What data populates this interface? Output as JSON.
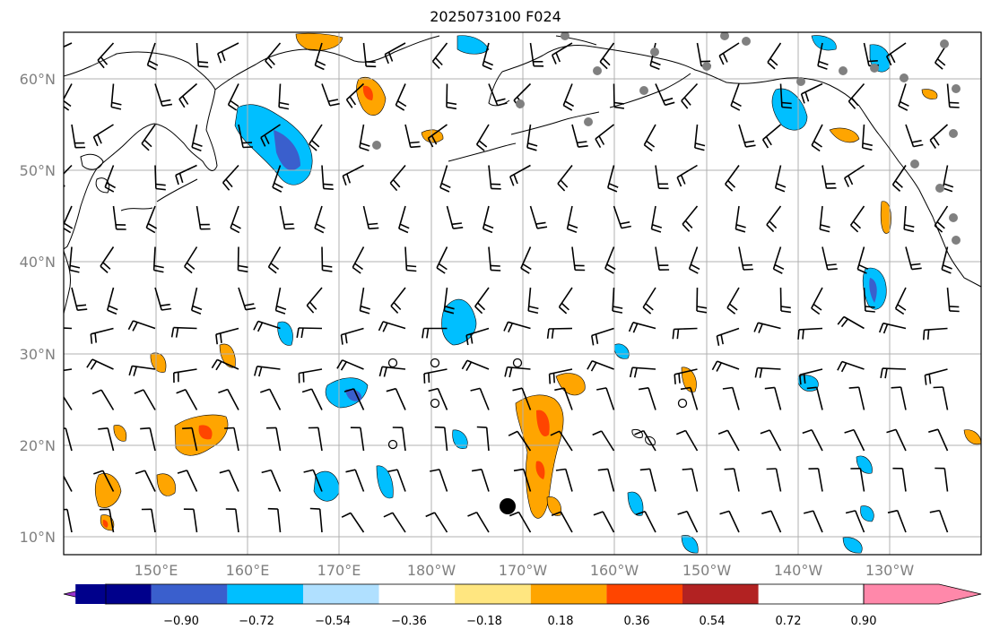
{
  "title": "2025073100 F024",
  "map": {
    "lat_labels": [
      "60°N",
      "50°N",
      "40°N",
      "30°N",
      "20°N",
      "10°N"
    ],
    "lon_labels": [
      "150°E",
      "160°E",
      "170°E",
      "180°W",
      "170°W",
      "160°W",
      "150°W",
      "140°W",
      "130°W"
    ],
    "grid": true,
    "extent": {
      "lon_min": 140,
      "lon_max": 240,
      "lat_min": 8,
      "lat_max": 65
    },
    "colors": {
      "coast": "#000000",
      "grid": "#b0b0b0",
      "station_marker": "#808080"
    }
  },
  "colorbar": {
    "ticks": [
      "−0.90",
      "−0.72",
      "−0.54",
      "−0.36",
      "−0.18",
      "0.18",
      "0.36",
      "0.54",
      "0.72",
      "0.90"
    ],
    "colors": [
      "#9932cc",
      "#00008b",
      "#3a5fcd",
      "#00bfff",
      "#b0e0ff",
      "#ffffff",
      "#ffe680",
      "#ffa500",
      "#ff4500",
      "#b22222",
      "#ff88aa"
    ],
    "extend": "both"
  }
}
